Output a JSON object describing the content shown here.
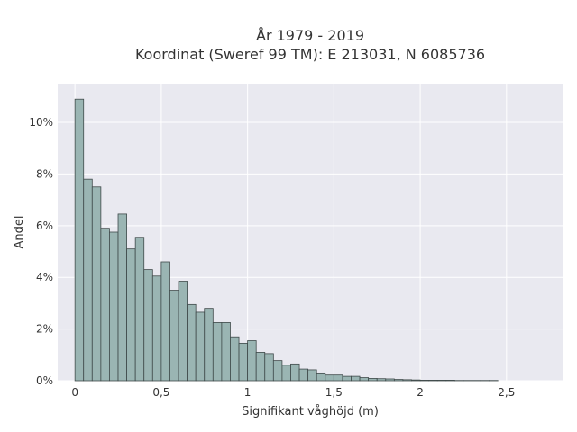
{
  "chart_data": {
    "type": "bar",
    "title_line1": "År 1979 - 2019",
    "title_line2": "Koordinat (Sweref 99 TM): E 213031, N 6085736",
    "xlabel": "Signifikant våghöjd (m)",
    "ylabel": "Andel",
    "xlim": [
      -0.1,
      2.83
    ],
    "ylim": [
      0,
      0.115
    ],
    "x_ticks": [
      0,
      0.5,
      1,
      1.5,
      2,
      2.5
    ],
    "x_tick_labels": [
      "0",
      "0,5",
      "1",
      "1,5",
      "2",
      "2,5"
    ],
    "y_ticks": [
      0,
      0.02,
      0.04,
      0.06,
      0.08,
      0.1
    ],
    "y_tick_labels": [
      "0%",
      "2%",
      "4%",
      "6%",
      "8%",
      "10%"
    ],
    "bin_width": 0.05,
    "bin_start": 0,
    "values": [
      0.109,
      0.078,
      0.075,
      0.059,
      0.0575,
      0.0645,
      0.051,
      0.0555,
      0.043,
      0.0405,
      0.046,
      0.035,
      0.0385,
      0.0295,
      0.0265,
      0.028,
      0.0225,
      0.0225,
      0.017,
      0.0145,
      0.0155,
      0.011,
      0.0105,
      0.0078,
      0.006,
      0.0065,
      0.0045,
      0.0042,
      0.003,
      0.0022,
      0.0022,
      0.0017,
      0.0017,
      0.0012,
      0.0009,
      0.0008,
      0.0007,
      0.0005,
      0.0004,
      0.0003,
      0.0002,
      0.0002,
      0.0002,
      0.0002,
      0.0001,
      0.0001,
      0.0001,
      0.0001,
      0.0001
    ],
    "grid": true,
    "colors": {
      "plot_background": "#e9e9f0",
      "grid": "#ffffff",
      "bar_fill": "#9ab5b3",
      "bar_stroke": "#3f4a4a"
    }
  }
}
